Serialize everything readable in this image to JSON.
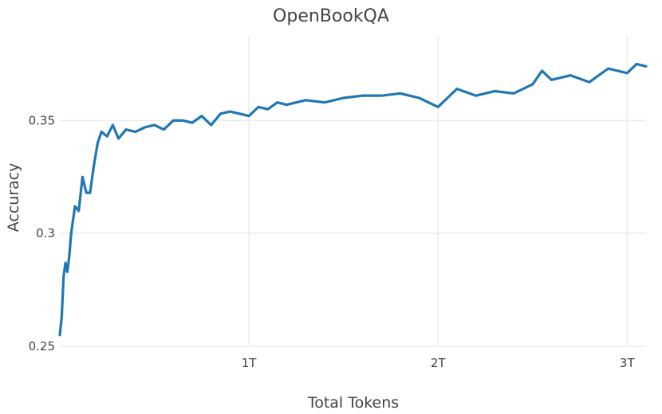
{
  "chart_data": {
    "type": "line",
    "title": "OpenBookQA",
    "xlabel": "Total Tokens",
    "ylabel": "Accuracy",
    "x_unit_scale": 1000000000000.0,
    "xlim": [
      0.0,
      3.1
    ],
    "ylim": [
      0.25,
      0.3875
    ],
    "x_ticks": [
      {
        "value": 1,
        "label": "1T"
      },
      {
        "value": 2,
        "label": "2T"
      },
      {
        "value": 3,
        "label": "3T"
      }
    ],
    "y_ticks": [
      {
        "value": 0.25,
        "label": "0.25"
      },
      {
        "value": 0.3,
        "label": "0.3"
      },
      {
        "value": 0.35,
        "label": "0.35"
      }
    ],
    "grid": true,
    "legend": "none",
    "colors": {
      "series": "#1f77b4",
      "grid": "#ebebeb",
      "text": "#444444"
    },
    "series": [
      {
        "x": [
          0.0,
          0.01,
          0.02,
          0.03,
          0.04,
          0.05,
          0.06,
          0.08,
          0.1,
          0.12,
          0.14,
          0.16,
          0.18,
          0.2,
          0.22,
          0.25,
          0.28,
          0.31,
          0.35,
          0.4,
          0.45,
          0.5,
          0.55,
          0.6,
          0.65,
          0.7,
          0.75,
          0.8,
          0.85,
          0.9,
          0.95,
          1.0,
          1.05,
          1.1,
          1.15,
          1.2,
          1.3,
          1.4,
          1.5,
          1.6,
          1.7,
          1.8,
          1.9,
          2.0,
          2.1,
          2.2,
          2.3,
          2.4,
          2.5,
          2.55,
          2.6,
          2.7,
          2.8,
          2.9,
          3.0,
          3.05,
          3.1
        ],
        "y": [
          0.255,
          0.263,
          0.281,
          0.287,
          0.283,
          0.29,
          0.3,
          0.312,
          0.31,
          0.325,
          0.318,
          0.318,
          0.33,
          0.34,
          0.345,
          0.343,
          0.348,
          0.342,
          0.346,
          0.345,
          0.347,
          0.348,
          0.346,
          0.35,
          0.35,
          0.349,
          0.352,
          0.348,
          0.353,
          0.354,
          0.353,
          0.352,
          0.356,
          0.355,
          0.358,
          0.357,
          0.359,
          0.358,
          0.36,
          0.361,
          0.361,
          0.362,
          0.36,
          0.356,
          0.364,
          0.361,
          0.363,
          0.362,
          0.366,
          0.372,
          0.368,
          0.37,
          0.367,
          0.373,
          0.371,
          0.375,
          0.374
        ]
      }
    ]
  }
}
